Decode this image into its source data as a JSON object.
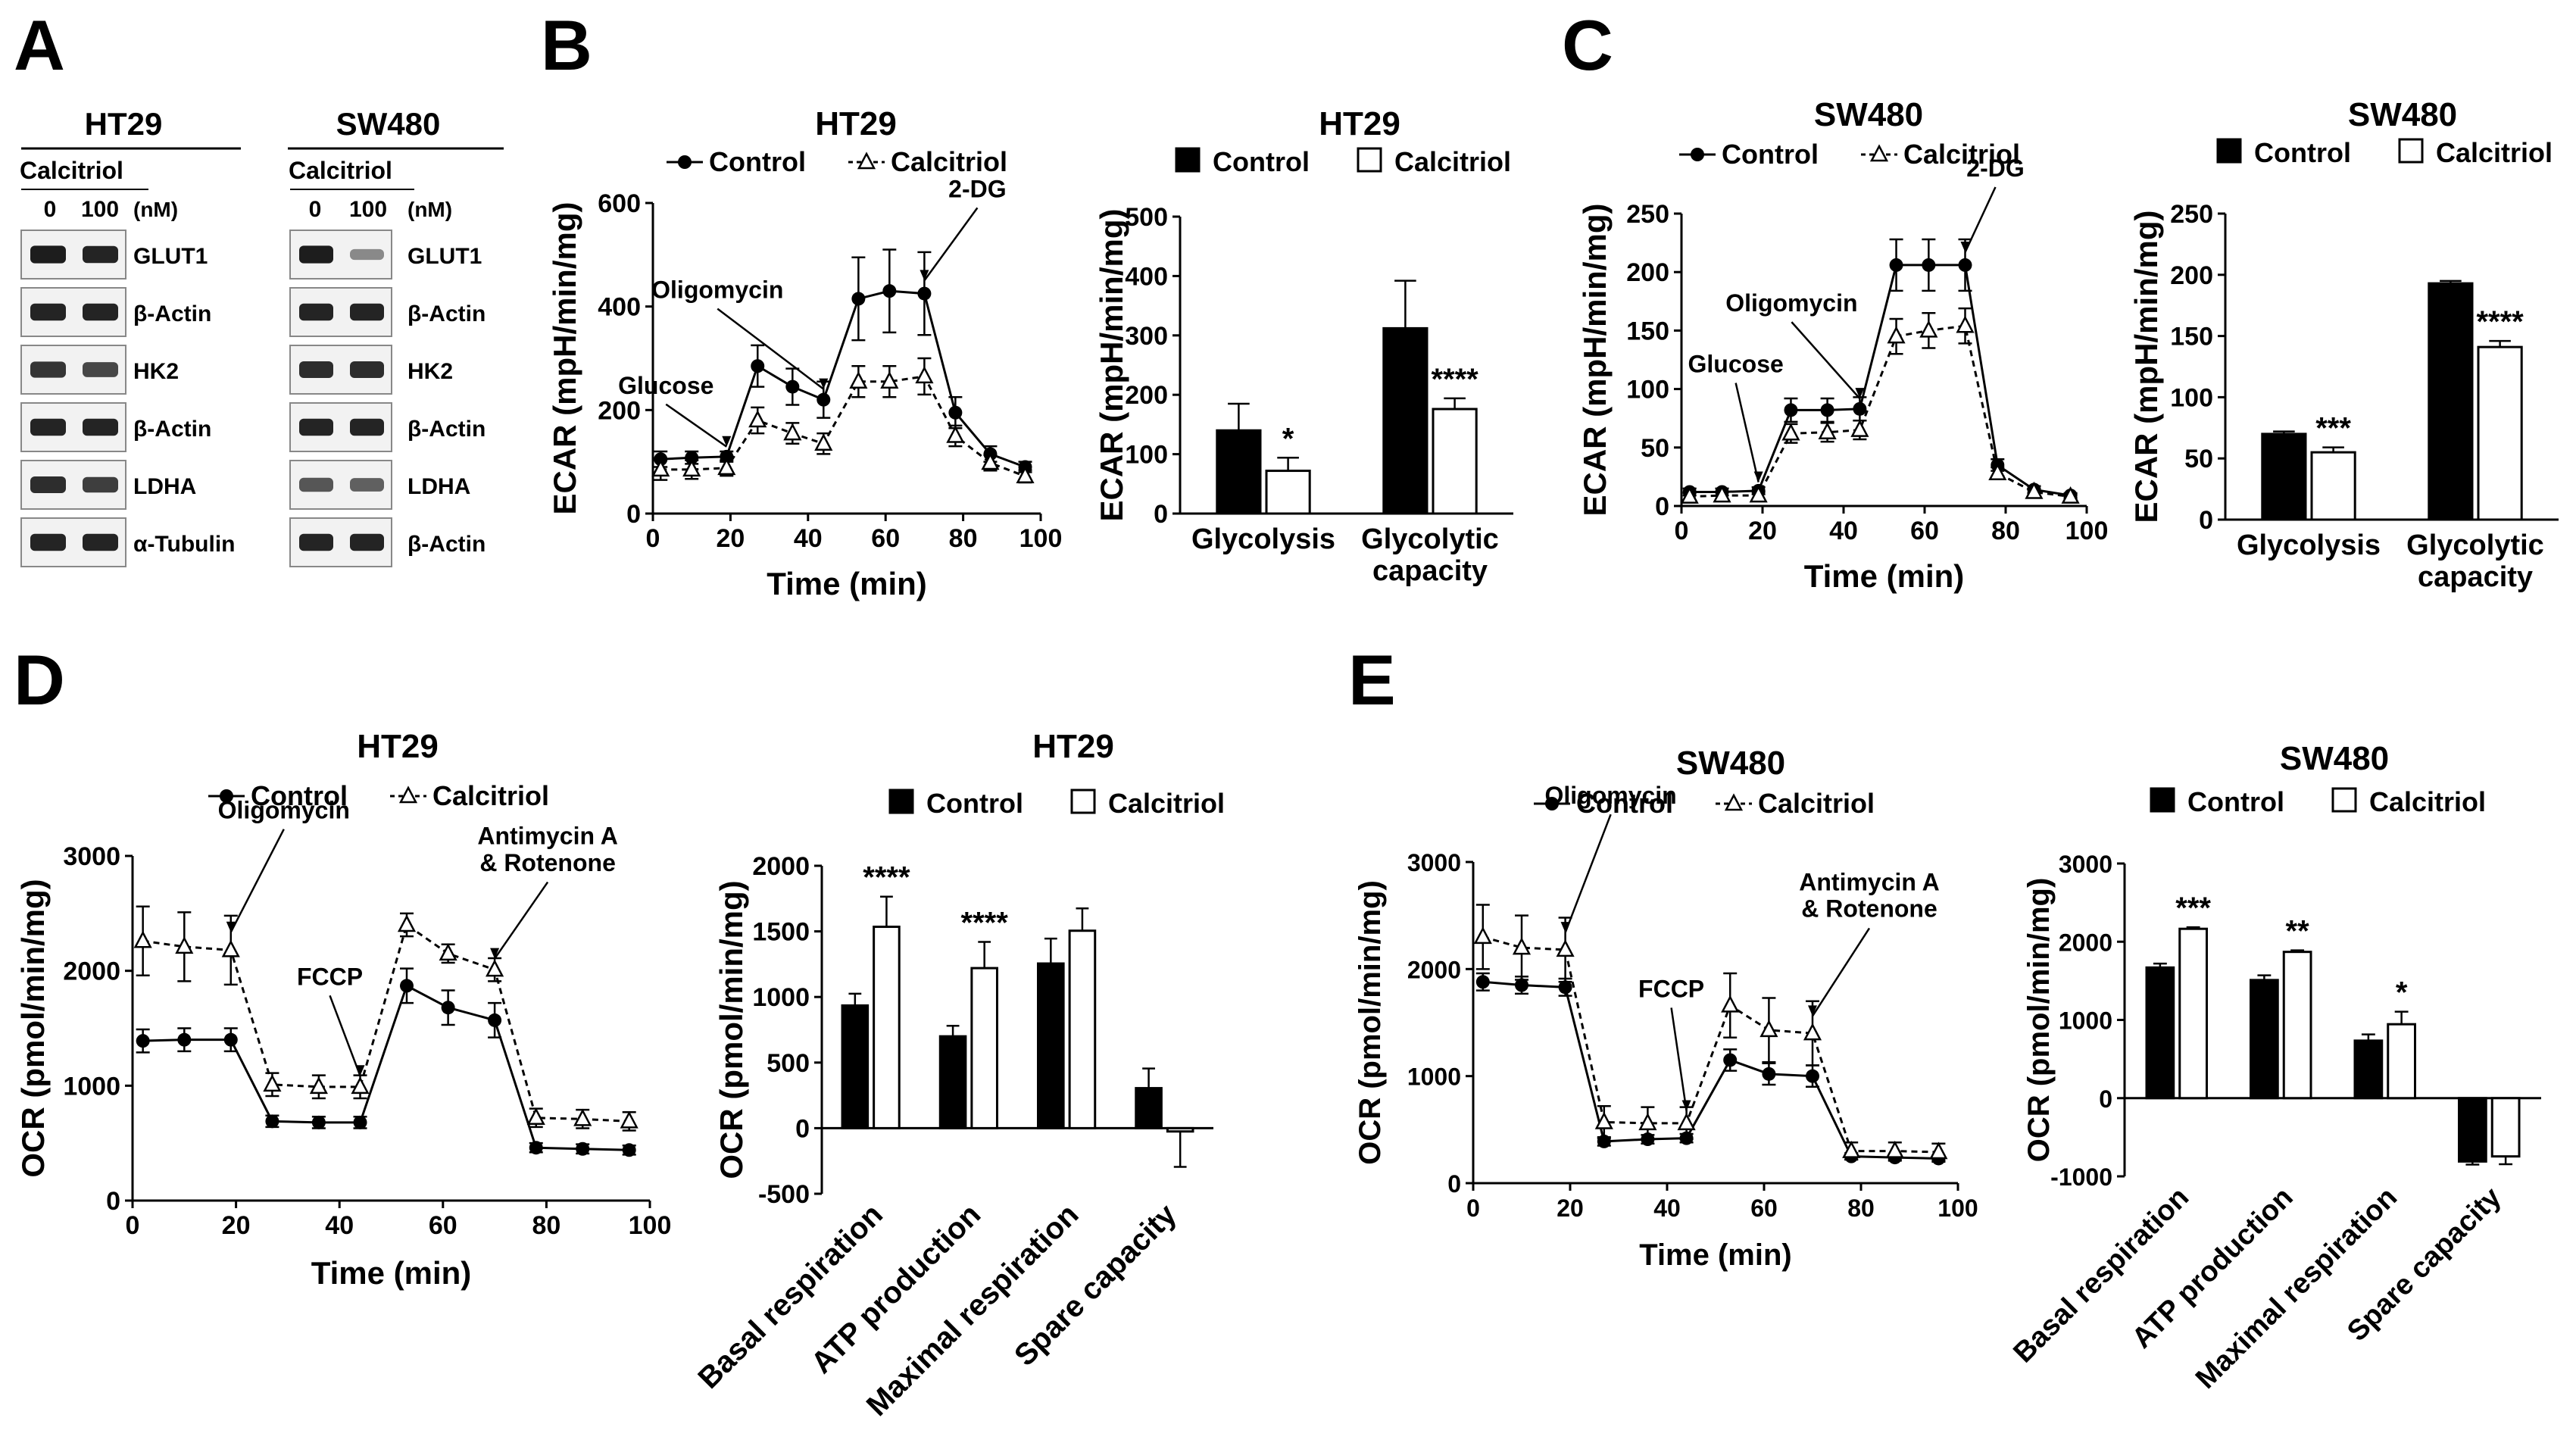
{
  "panels": {
    "A": "A",
    "B": "B",
    "C": "C",
    "D": "D",
    "E": "E"
  },
  "colors": {
    "control": "#000000",
    "calcitriol": "#ffffff",
    "axis": "#000000",
    "blot_bg": "#f2f2f2",
    "band": "#141414"
  },
  "western": {
    "columns": [
      {
        "cell": "HT29",
        "treatment": "Calcitriol",
        "lanes": [
          "0",
          "100"
        ],
        "unit": "(nM)",
        "rows": [
          {
            "label": "GLUT1",
            "intensity": [
              0.95,
              0.9
            ]
          },
          {
            "label": "β-Actin",
            "intensity": [
              0.9,
              0.9
            ]
          },
          {
            "label": "HK2",
            "intensity": [
              0.8,
              0.7
            ]
          },
          {
            "label": "β-Actin",
            "intensity": [
              0.9,
              0.9
            ]
          },
          {
            "label": "LDHA",
            "intensity": [
              0.85,
              0.75
            ]
          },
          {
            "label": "α-Tubulin",
            "intensity": [
              0.9,
              0.9
            ]
          }
        ]
      },
      {
        "cell": "SW480",
        "treatment": "Calcitriol",
        "lanes": [
          "0",
          "100"
        ],
        "unit": "(nM)",
        "rows": [
          {
            "label": "GLUT1",
            "intensity": [
              0.95,
              0.3
            ]
          },
          {
            "label": "β-Actin",
            "intensity": [
              0.9,
              0.9
            ]
          },
          {
            "label": "HK2",
            "intensity": [
              0.85,
              0.85
            ]
          },
          {
            "label": "β-Actin",
            "intensity": [
              0.9,
              0.9
            ]
          },
          {
            "label": "LDHA",
            "intensity": [
              0.6,
              0.55
            ]
          },
          {
            "label": "β-Actin",
            "intensity": [
              0.9,
              0.9
            ]
          }
        ]
      }
    ]
  },
  "chart_data": [
    {
      "id": "B-line",
      "type": "line",
      "title": "HT29",
      "xlabel": "Time (min)",
      "ylabel": "ECAR (mpH/min/mg)",
      "xlim": [
        0,
        100
      ],
      "xticks": [
        0,
        20,
        40,
        60,
        80,
        100
      ],
      "ylim": [
        0,
        600
      ],
      "yticks": [
        0,
        200,
        400,
        600
      ],
      "legend": [
        "Control",
        "Calcitriol"
      ],
      "x": [
        2,
        10,
        19,
        27,
        36,
        44,
        53,
        61,
        70,
        78,
        87,
        96
      ],
      "series": [
        {
          "name": "Control",
          "values": [
            105,
            108,
            110,
            285,
            245,
            220,
            415,
            430,
            425,
            195,
            115,
            90
          ],
          "errors": [
            15,
            12,
            10,
            40,
            35,
            35,
            80,
            80,
            80,
            30,
            15,
            10
          ]
        },
        {
          "name": "Calcitriol",
          "values": [
            85,
            85,
            88,
            180,
            155,
            135,
            255,
            255,
            265,
            150,
            98,
            72
          ],
          "errors": [
            20,
            18,
            15,
            25,
            20,
            20,
            30,
            30,
            35,
            20,
            15,
            12
          ]
        }
      ],
      "annotations": [
        {
          "text": "Glucose",
          "x": 19
        },
        {
          "text": "Oligomycin",
          "x": 44
        },
        {
          "text": "2-DG",
          "x": 70
        }
      ]
    },
    {
      "id": "B-bar",
      "type": "bar",
      "title": "HT29",
      "ylabel": "ECAR (mpH/min/mg)",
      "legend": [
        "Control",
        "Calcitriol"
      ],
      "ylim": [
        0,
        500
      ],
      "yticks": [
        0,
        100,
        200,
        300,
        400,
        500
      ],
      "categories": [
        "Glycolysis",
        "Glycolytic\ncapacity"
      ],
      "series": [
        {
          "name": "Control",
          "values": [
            140,
            312
          ],
          "errors": [
            45,
            80
          ]
        },
        {
          "name": "Calcitriol",
          "values": [
            72,
            176
          ],
          "errors": [
            22,
            18
          ]
        }
      ],
      "significance": [
        "*",
        "****"
      ]
    },
    {
      "id": "C-line",
      "type": "line",
      "title": "SW480",
      "xlabel": "Time (min)",
      "ylabel": "ECAR (mpH/min/mg)",
      "xlim": [
        0,
        100
      ],
      "xticks": [
        0,
        20,
        40,
        60,
        80,
        100
      ],
      "ylim": [
        0,
        250
      ],
      "yticks": [
        0,
        50,
        100,
        150,
        200,
        250
      ],
      "legend": [
        "Control",
        "Calcitriol"
      ],
      "x": [
        2,
        10,
        19,
        27,
        36,
        44,
        53,
        61,
        70,
        78,
        87,
        96
      ],
      "series": [
        {
          "name": "Control",
          "values": [
            12,
            12,
            13,
            82,
            82,
            83,
            206,
            206,
            206,
            35,
            14,
            9
          ],
          "errors": [
            3,
            3,
            3,
            10,
            10,
            10,
            22,
            22,
            22,
            5,
            3,
            2
          ]
        },
        {
          "name": "Calcitriol",
          "values": [
            8,
            9,
            9,
            62,
            63,
            65,
            145,
            150,
            154,
            28,
            12,
            8
          ],
          "errors": [
            3,
            3,
            3,
            8,
            8,
            8,
            15,
            15,
            15,
            5,
            3,
            2
          ]
        }
      ],
      "annotations": [
        {
          "text": "Glucose",
          "x": 19
        },
        {
          "text": "Oligomycin",
          "x": 44
        },
        {
          "text": "2-DG",
          "x": 70
        }
      ]
    },
    {
      "id": "C-bar",
      "type": "bar",
      "title": "SW480",
      "ylabel": "ECAR (mpH/min/mg)",
      "legend": [
        "Control",
        "Calcitriol"
      ],
      "ylim": [
        0,
        250
      ],
      "yticks": [
        0,
        50,
        100,
        150,
        200,
        250
      ],
      "categories": [
        "Glycolysis",
        "Glycolytic\ncapacity"
      ],
      "series": [
        {
          "name": "Control",
          "values": [
            70,
            193
          ],
          "errors": [
            2,
            2
          ]
        },
        {
          "name": "Calcitriol",
          "values": [
            55,
            141
          ],
          "errors": [
            4,
            5
          ]
        }
      ],
      "significance": [
        "***",
        "****"
      ]
    },
    {
      "id": "D-line",
      "type": "line",
      "title": "HT29",
      "xlabel": "Time (min)",
      "ylabel": "OCR (pmol/min/mg)",
      "xlim": [
        0,
        100
      ],
      "xticks": [
        0,
        20,
        40,
        60,
        80,
        100
      ],
      "ylim": [
        0,
        3000
      ],
      "yticks": [
        0,
        1000,
        2000,
        3000
      ],
      "legend": [
        "Control",
        "Calcitriol"
      ],
      "x": [
        2,
        10,
        19,
        27,
        36,
        44,
        53,
        61,
        70,
        78,
        87,
        96
      ],
      "series": [
        {
          "name": "Control",
          "values": [
            1390,
            1400,
            1400,
            690,
            680,
            680,
            1870,
            1680,
            1570,
            460,
            450,
            440
          ],
          "errors": [
            100,
            100,
            100,
            50,
            50,
            50,
            150,
            150,
            150,
            40,
            40,
            40
          ]
        },
        {
          "name": "Calcitriol",
          "values": [
            2260,
            2210,
            2180,
            1010,
            990,
            990,
            2400,
            2150,
            2010,
            720,
            710,
            690
          ],
          "errors": [
            300,
            300,
            300,
            100,
            100,
            100,
            100,
            80,
            100,
            80,
            80,
            80
          ]
        }
      ],
      "annotations": [
        {
          "text": "Oligomycin",
          "x": 19
        },
        {
          "text": "FCCP",
          "x": 44
        },
        {
          "text": "Antimycin A\n& Rotenone",
          "x": 70
        }
      ]
    },
    {
      "id": "D-bar",
      "type": "bar",
      "title": "HT29",
      "ylabel": "OCR (pmol/min/mg)",
      "legend": [
        "Control",
        "Calcitriol"
      ],
      "ylim": [
        -500,
        2000
      ],
      "yticks": [
        -500,
        0,
        500,
        1000,
        1500,
        2000
      ],
      "categories": [
        "Basal respiration",
        "ATP production",
        "Maximal respiration",
        "Spare capacity"
      ],
      "series": [
        {
          "name": "Control",
          "values": [
            935,
            700,
            1255,
            305
          ],
          "errors": [
            90,
            80,
            190,
            150
          ]
        },
        {
          "name": "Calcitriol",
          "values": [
            1535,
            1220,
            1505,
            -25
          ],
          "errors": [
            230,
            200,
            170,
            270
          ]
        }
      ],
      "significance": [
        "****",
        "****",
        "",
        ""
      ]
    },
    {
      "id": "E-line",
      "type": "line",
      "title": "SW480",
      "xlabel": "Time (min)",
      "ylabel": "OCR (pmol/min/mg)",
      "xlim": [
        0,
        100
      ],
      "xticks": [
        0,
        20,
        40,
        60,
        80,
        100
      ],
      "ylim": [
        0,
        3000
      ],
      "yticks": [
        0,
        1000,
        2000,
        3000
      ],
      "legend": [
        "Control",
        "Calcitriol"
      ],
      "x": [
        2,
        10,
        19,
        27,
        36,
        44,
        53,
        61,
        70,
        78,
        87,
        96
      ],
      "series": [
        {
          "name": "Control",
          "values": [
            1880,
            1850,
            1830,
            390,
            410,
            420,
            1150,
            1020,
            1000,
            250,
            240,
            230
          ],
          "errors": [
            80,
            80,
            80,
            40,
            40,
            40,
            100,
            100,
            100,
            30,
            30,
            30
          ]
        },
        {
          "name": "Calcitriol",
          "values": [
            2300,
            2200,
            2180,
            570,
            560,
            560,
            1660,
            1430,
            1400,
            300,
            300,
            290
          ],
          "errors": [
            300,
            300,
            300,
            150,
            150,
            150,
            300,
            300,
            300,
            80,
            80,
            80
          ]
        }
      ],
      "annotations": [
        {
          "text": "Oligomycin",
          "x": 19
        },
        {
          "text": "FCCP",
          "x": 44
        },
        {
          "text": "Antimycin A\n& Rotenone",
          "x": 70
        }
      ]
    },
    {
      "id": "E-bar",
      "type": "bar",
      "title": "SW480",
      "ylabel": "OCR (pmol/min/mg)",
      "legend": [
        "Control",
        "Calcitriol"
      ],
      "ylim": [
        -1000,
        3000
      ],
      "yticks": [
        -1000,
        0,
        1000,
        2000,
        3000
      ],
      "categories": [
        "Basal respiration",
        "ATP production",
        "Maximal respiration",
        "Spare capacity"
      ],
      "series": [
        {
          "name": "Control",
          "values": [
            1670,
            1510,
            735,
            -810
          ],
          "errors": [
            50,
            60,
            80,
            40
          ]
        },
        {
          "name": "Calcitriol",
          "values": [
            2165,
            1870,
            945,
            -745
          ],
          "errors": [
            20,
            20,
            160,
            100
          ]
        }
      ],
      "significance": [
        "***",
        "**",
        "*",
        ""
      ]
    }
  ]
}
